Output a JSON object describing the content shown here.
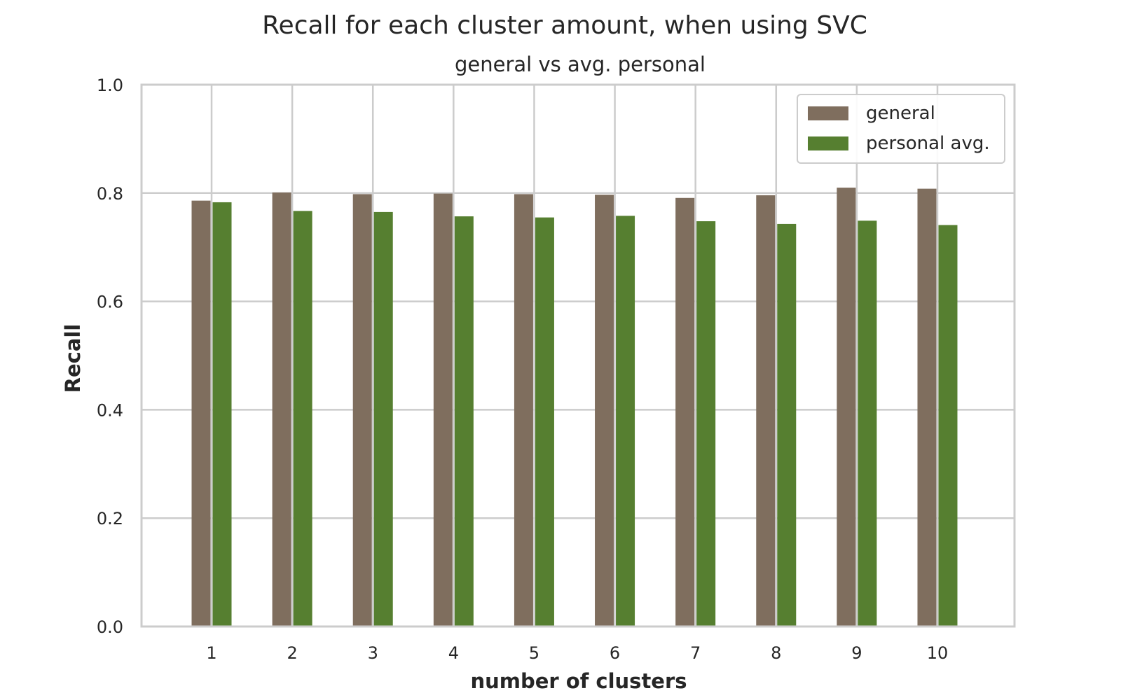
{
  "chart_data": {
    "type": "bar",
    "title": "Recall for each cluster amount, when using SVC",
    "subtitle": "general vs avg. personal",
    "xlabel": "number of clusters",
    "ylabel": "Recall",
    "categories": [
      "1",
      "2",
      "3",
      "4",
      "5",
      "6",
      "7",
      "8",
      "9",
      "10"
    ],
    "ylim": [
      0,
      1.0
    ],
    "yticks": [
      "0.0",
      "0.2",
      "0.4",
      "0.6",
      "0.8",
      "1.0"
    ],
    "grid": true,
    "legend_position": "top-right",
    "series": [
      {
        "name": "general",
        "color": "#7f6e5e",
        "values": [
          0.786,
          0.801,
          0.798,
          0.799,
          0.798,
          0.797,
          0.791,
          0.796,
          0.81,
          0.808
        ]
      },
      {
        "name": "personal avg.",
        "color": "#567f30",
        "values": [
          0.783,
          0.767,
          0.765,
          0.757,
          0.755,
          0.758,
          0.748,
          0.743,
          0.749,
          0.741
        ]
      }
    ]
  }
}
